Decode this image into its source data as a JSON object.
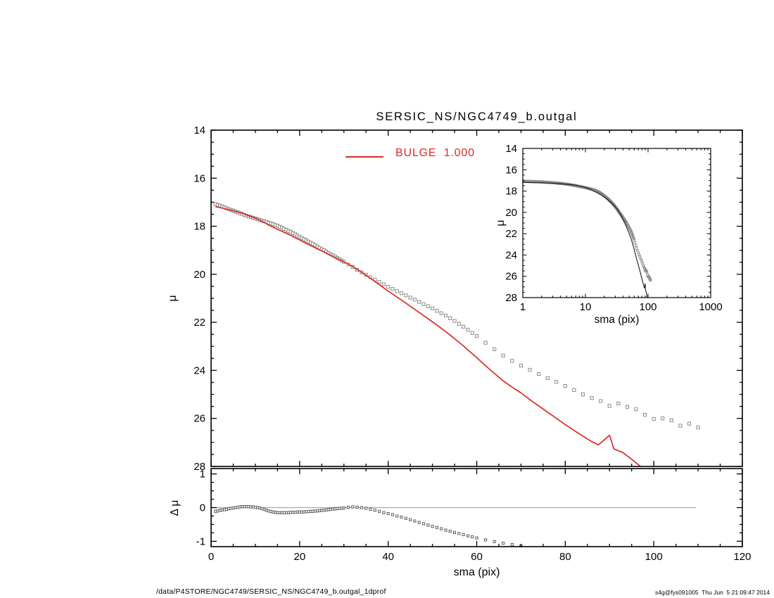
{
  "title": "SERSIC_NS/NGC4749_b.outgal",
  "legend": {
    "label": "BULGE  1.000",
    "color": "#db2b21"
  },
  "footer": {
    "left": "/data/P4STORE/NGC4749/SERSIC_NS/NGC4749_b.outgal_1dprof",
    "right": "s4g@fys091005  Thu Jun  5 21:09:47 2014"
  },
  "chart_data": {
    "type": "line+scatter",
    "title": "SERSIC_NS/NGC4749_b.outgal",
    "colors": {
      "model": "#db2b21",
      "inset_model": "#1a1a1a",
      "data_marker": "#858585",
      "residual_marker": "#4f4f4f",
      "zero_line": "#a8a8a8",
      "axis": "#000000",
      "inset_band": "#8f8f8f"
    },
    "panels": {
      "main": {
        "xlim": [
          0,
          120
        ],
        "ylim": [
          14,
          28
        ],
        "xlog": false,
        "xticks": [
          0,
          20,
          40,
          60,
          80,
          100,
          120
        ],
        "xminor": 5,
        "yticks": [
          14,
          16,
          18,
          20,
          22,
          24,
          26,
          28
        ],
        "ytick_labels": [
          "14",
          "16",
          "18",
          "20",
          "22",
          "24",
          "26",
          "28"
        ],
        "yminor": 0.5,
        "ylabel": "μ",
        "series": [
          "observed",
          "bulge_model"
        ]
      },
      "inset": {
        "xlim": [
          1,
          1000
        ],
        "ylim": [
          14,
          28
        ],
        "xlog": true,
        "xticks": [
          1,
          10,
          100,
          1000
        ],
        "xtick_labels": [
          "1",
          "10",
          "100",
          "1000"
        ],
        "yticks": [
          14,
          16,
          18,
          20,
          22,
          24,
          26,
          28
        ],
        "ytick_labels": [
          "14",
          "16",
          "18",
          "20",
          "22",
          "24",
          "26",
          "28"
        ],
        "yminor": 0.5,
        "xlabel": "sma (pix)",
        "ylabel": "μ",
        "model_color": "#1a1a1a",
        "series": [
          "observed",
          "bulge_model"
        ]
      },
      "residual": {
        "xlim": [
          0,
          120
        ],
        "ylim": [
          1.16,
          -1.16
        ],
        "xlog": false,
        "xticks": [
          0,
          20,
          40,
          60,
          80,
          100,
          120
        ],
        "xtick_labels": [
          "0",
          "20",
          "40",
          "60",
          "80",
          "100",
          "120"
        ],
        "xminor": 5,
        "yticks": [
          -1,
          0,
          1
        ],
        "ytick_labels": [
          "-1",
          "0",
          "1"
        ],
        "yminor": 0.25,
        "xlabel": "sma (pix)",
        "ylabel": "Δ μ",
        "zero_line": {
          "x0": 0,
          "x1": 109.5,
          "y": 0
        },
        "series": [
          "residual"
        ]
      }
    },
    "series": {
      "observed": {
        "name": "observed surface brightness profile",
        "marker": "open-square",
        "color": "#858585",
        "band_in_inset": true,
        "x": [
          1,
          1.5,
          2,
          2.5,
          3,
          3.5,
          4,
          4.5,
          5,
          5.5,
          6,
          6.5,
          7,
          7.5,
          8,
          8.5,
          9,
          9.5,
          10,
          10.5,
          11,
          11.5,
          12,
          12.5,
          13,
          13.5,
          14,
          14.5,
          15,
          15.5,
          16,
          16.5,
          17,
          17.5,
          18,
          18.5,
          19,
          19.5,
          20,
          20.5,
          21,
          21.5,
          22,
          22.5,
          23,
          23.5,
          24,
          24.5,
          25,
          25.5,
          26,
          26.5,
          27,
          27.5,
          28,
          28.5,
          29,
          29.5,
          30,
          31,
          32,
          33,
          34,
          35,
          36,
          37,
          38,
          39,
          40,
          41,
          42,
          43,
          44,
          45,
          46,
          47,
          48,
          49,
          50,
          51,
          52,
          53,
          54,
          55,
          56,
          57,
          58,
          59,
          60,
          62,
          64,
          66,
          68,
          70,
          72,
          74,
          76,
          78,
          80,
          82,
          84,
          86,
          88,
          90,
          92,
          94,
          96,
          98,
          100,
          102,
          104,
          106,
          108,
          110
        ],
        "y": [
          17.08,
          17.11,
          17.14,
          17.18,
          17.21,
          17.25,
          17.28,
          17.32,
          17.35,
          17.39,
          17.42,
          17.46,
          17.49,
          17.53,
          17.56,
          17.59,
          17.62,
          17.65,
          17.68,
          17.71,
          17.74,
          17.77,
          17.79,
          17.82,
          17.85,
          17.88,
          17.91,
          17.95,
          17.98,
          18.02,
          18.06,
          18.11,
          18.15,
          18.2,
          18.24,
          18.29,
          18.34,
          18.39,
          18.44,
          18.49,
          18.54,
          18.59,
          18.64,
          18.69,
          18.74,
          18.79,
          18.84,
          18.9,
          18.95,
          19.0,
          19.05,
          19.11,
          19.16,
          19.21,
          19.26,
          19.32,
          19.37,
          19.43,
          19.48,
          19.59,
          19.7,
          19.81,
          19.92,
          20.02,
          20.12,
          20.22,
          20.32,
          20.42,
          20.52,
          20.61,
          20.7,
          20.79,
          20.88,
          20.97,
          21.06,
          21.15,
          21.24,
          21.33,
          21.42,
          21.52,
          21.62,
          21.72,
          21.83,
          21.94,
          22.06,
          22.18,
          22.31,
          22.44,
          22.57,
          22.85,
          23.12,
          23.38,
          23.6,
          23.8,
          23.98,
          24.15,
          24.32,
          24.48,
          24.65,
          24.82,
          25.0,
          25.15,
          25.28,
          25.48,
          25.38,
          25.52,
          25.62,
          25.85,
          26.02,
          26.0,
          26.08,
          26.3,
          26.22,
          26.38
        ]
      },
      "bulge_model": {
        "name": "BULGE  1.000",
        "type": "line",
        "color": "#db2b21",
        "x": [
          1,
          2,
          3,
          4,
          5,
          6,
          7,
          8,
          9,
          10,
          11,
          12,
          13,
          14,
          15,
          16,
          17,
          18,
          19,
          20,
          21,
          22,
          23,
          24,
          25,
          26,
          27,
          28,
          29,
          30,
          31,
          32,
          33,
          34,
          35,
          36,
          37,
          38,
          39,
          40,
          41,
          42,
          43,
          44,
          45,
          46,
          47,
          48,
          49,
          50,
          51,
          52,
          53,
          54,
          55,
          56,
          57,
          58,
          59,
          60,
          62,
          64,
          66,
          68,
          70,
          72,
          74,
          76,
          78,
          80,
          82,
          84,
          86,
          87.5,
          90,
          91,
          93,
          95,
          97
        ],
        "y": [
          17.19,
          17.22,
          17.27,
          17.31,
          17.36,
          17.41,
          17.46,
          17.53,
          17.6,
          17.67,
          17.75,
          17.84,
          17.95,
          18.04,
          18.13,
          18.21,
          18.3,
          18.38,
          18.48,
          18.57,
          18.67,
          18.76,
          18.85,
          18.94,
          19.03,
          19.12,
          19.21,
          19.3,
          19.39,
          19.49,
          19.58,
          19.68,
          19.8,
          19.92,
          20.04,
          20.17,
          20.3,
          20.43,
          20.57,
          20.7,
          20.82,
          20.95,
          21.07,
          21.2,
          21.33,
          21.46,
          21.59,
          21.72,
          21.85,
          21.98,
          22.11,
          22.25,
          22.39,
          22.53,
          22.68,
          22.83,
          22.98,
          23.15,
          23.31,
          23.47,
          23.81,
          24.13,
          24.44,
          24.7,
          24.94,
          25.22,
          25.48,
          25.74,
          26.0,
          26.26,
          26.5,
          26.74,
          26.97,
          27.1,
          26.7,
          27.27,
          27.42,
          27.7,
          28.0
        ]
      },
      "residual": {
        "name": "data minus model",
        "marker": "open-square",
        "color": "#4f4f4f",
        "x": [
          1,
          1.5,
          2,
          2.5,
          3,
          3.5,
          4,
          4.5,
          5,
          5.5,
          6,
          6.5,
          7,
          7.5,
          8,
          8.5,
          9,
          9.5,
          10,
          10.5,
          11,
          11.5,
          12,
          12.5,
          13,
          13.5,
          14,
          14.5,
          15,
          15.5,
          16,
          16.5,
          17,
          17.5,
          18,
          18.5,
          19,
          19.5,
          20,
          20.5,
          21,
          21.5,
          22,
          22.5,
          23,
          23.5,
          24,
          24.5,
          25,
          25.5,
          26,
          26.5,
          27,
          27.5,
          28,
          28.5,
          29,
          29.5,
          30,
          31,
          32,
          33,
          34,
          35,
          36,
          37,
          38,
          39,
          40,
          41,
          42,
          43,
          44,
          45,
          46,
          47,
          48,
          49,
          50,
          51,
          52,
          53,
          54,
          55,
          56,
          57,
          58,
          59,
          60,
          62,
          64,
          66,
          68,
          70
        ],
        "y": [
          -0.11,
          -0.1,
          -0.08,
          -0.07,
          -0.06,
          -0.05,
          -0.03,
          -0.02,
          -0.01,
          0.0,
          0.01,
          0.02,
          0.03,
          0.03,
          0.03,
          0.03,
          0.02,
          0.02,
          0.01,
          0.0,
          -0.01,
          -0.03,
          -0.05,
          -0.08,
          -0.1,
          -0.12,
          -0.13,
          -0.14,
          -0.15,
          -0.15,
          -0.15,
          -0.15,
          -0.15,
          -0.15,
          -0.14,
          -0.14,
          -0.14,
          -0.13,
          -0.13,
          -0.13,
          -0.13,
          -0.12,
          -0.12,
          -0.11,
          -0.11,
          -0.1,
          -0.1,
          -0.09,
          -0.08,
          -0.08,
          -0.07,
          -0.06,
          -0.05,
          -0.04,
          -0.04,
          -0.03,
          -0.02,
          -0.02,
          -0.01,
          0.01,
          0.02,
          0.01,
          0.0,
          -0.02,
          -0.05,
          -0.08,
          -0.11,
          -0.15,
          -0.18,
          -0.21,
          -0.25,
          -0.28,
          -0.32,
          -0.36,
          -0.4,
          -0.44,
          -0.48,
          -0.52,
          -0.56,
          -0.59,
          -0.63,
          -0.67,
          -0.7,
          -0.74,
          -0.77,
          -0.8,
          -0.84,
          -0.87,
          -0.9,
          -0.96,
          -1.01,
          -1.06,
          -1.1,
          -1.14
        ]
      }
    }
  }
}
